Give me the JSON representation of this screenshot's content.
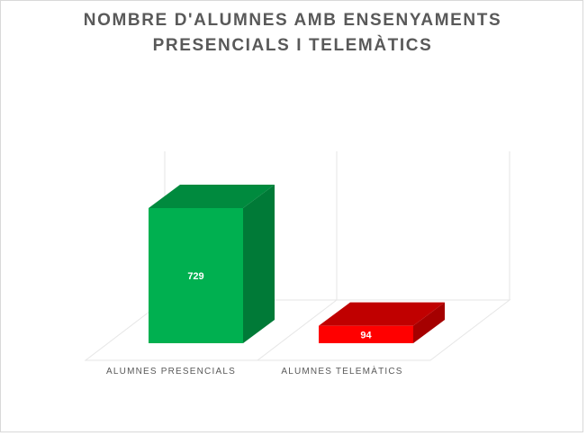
{
  "chart_data": {
    "type": "bar",
    "title_lines": [
      "NOMBRE D'ALUMNES AMB ENSENYAMENTS",
      "PRESENCIALS I TELEMÀTICS"
    ],
    "categories": [
      "ALUMNES PRESENCIALS",
      "ALUMNES TELEMÀTICS"
    ],
    "values": [
      729,
      94
    ],
    "data_labels": [
      "729",
      "94"
    ],
    "bar_colors": [
      {
        "front": "#00b050",
        "side": "#007a37",
        "top": "#008a3e"
      },
      {
        "front": "#ff0000",
        "side": "#a50000",
        "top": "#c00000"
      }
    ],
    "style": "3d-column",
    "ylim": [
      0,
      729
    ],
    "grid": false,
    "legend": "none",
    "xlabel": "",
    "ylabel": ""
  }
}
